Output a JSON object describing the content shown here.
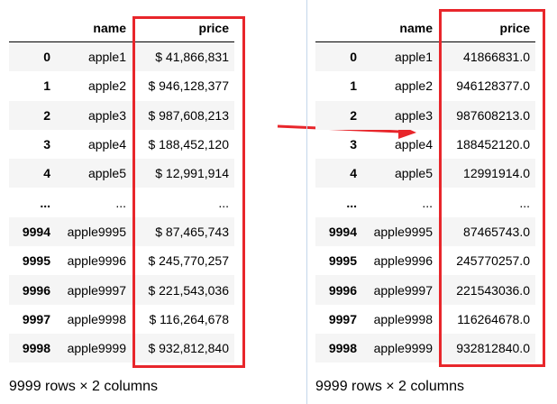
{
  "left": {
    "columns": [
      "",
      "name",
      "price"
    ],
    "rows": [
      {
        "index": "0",
        "name": "apple1",
        "price": "$ 41,866,831"
      },
      {
        "index": "1",
        "name": "apple2",
        "price": "$ 946,128,377"
      },
      {
        "index": "2",
        "name": "apple3",
        "price": "$ 987,608,213"
      },
      {
        "index": "3",
        "name": "apple4",
        "price": "$ 188,452,120"
      },
      {
        "index": "4",
        "name": "apple5",
        "price": "$ 12,991,914"
      },
      {
        "index": "...",
        "name": "...",
        "price": "..."
      },
      {
        "index": "9994",
        "name": "apple9995",
        "price": "$ 87,465,743"
      },
      {
        "index": "9995",
        "name": "apple9996",
        "price": "$ 245,770,257"
      },
      {
        "index": "9996",
        "name": "apple9997",
        "price": "$ 221,543,036"
      },
      {
        "index": "9997",
        "name": "apple9998",
        "price": "$ 116,264,678"
      },
      {
        "index": "9998",
        "name": "apple9999",
        "price": "$ 932,812,840"
      }
    ],
    "summary": "9999 rows × 2 columns"
  },
  "right": {
    "columns": [
      "",
      "name",
      "price"
    ],
    "rows": [
      {
        "index": "0",
        "name": "apple1",
        "price": "41866831.0"
      },
      {
        "index": "1",
        "name": "apple2",
        "price": "946128377.0"
      },
      {
        "index": "2",
        "name": "apple3",
        "price": "987608213.0"
      },
      {
        "index": "3",
        "name": "apple4",
        "price": "188452120.0"
      },
      {
        "index": "4",
        "name": "apple5",
        "price": "12991914.0"
      },
      {
        "index": "...",
        "name": "...",
        "price": "..."
      },
      {
        "index": "9994",
        "name": "apple9995",
        "price": "87465743.0"
      },
      {
        "index": "9995",
        "name": "apple9996",
        "price": "245770257.0"
      },
      {
        "index": "9996",
        "name": "apple9997",
        "price": "221543036.0"
      },
      {
        "index": "9997",
        "name": "apple9998",
        "price": "116264678.0"
      },
      {
        "index": "9998",
        "name": "apple9999",
        "price": "932812840.0"
      }
    ],
    "summary": "9999 rows × 2 columns"
  },
  "colors": {
    "highlight": "#e8262b",
    "frame_border": "#c4d6ea",
    "row_stripe": "#f5f5f5"
  }
}
